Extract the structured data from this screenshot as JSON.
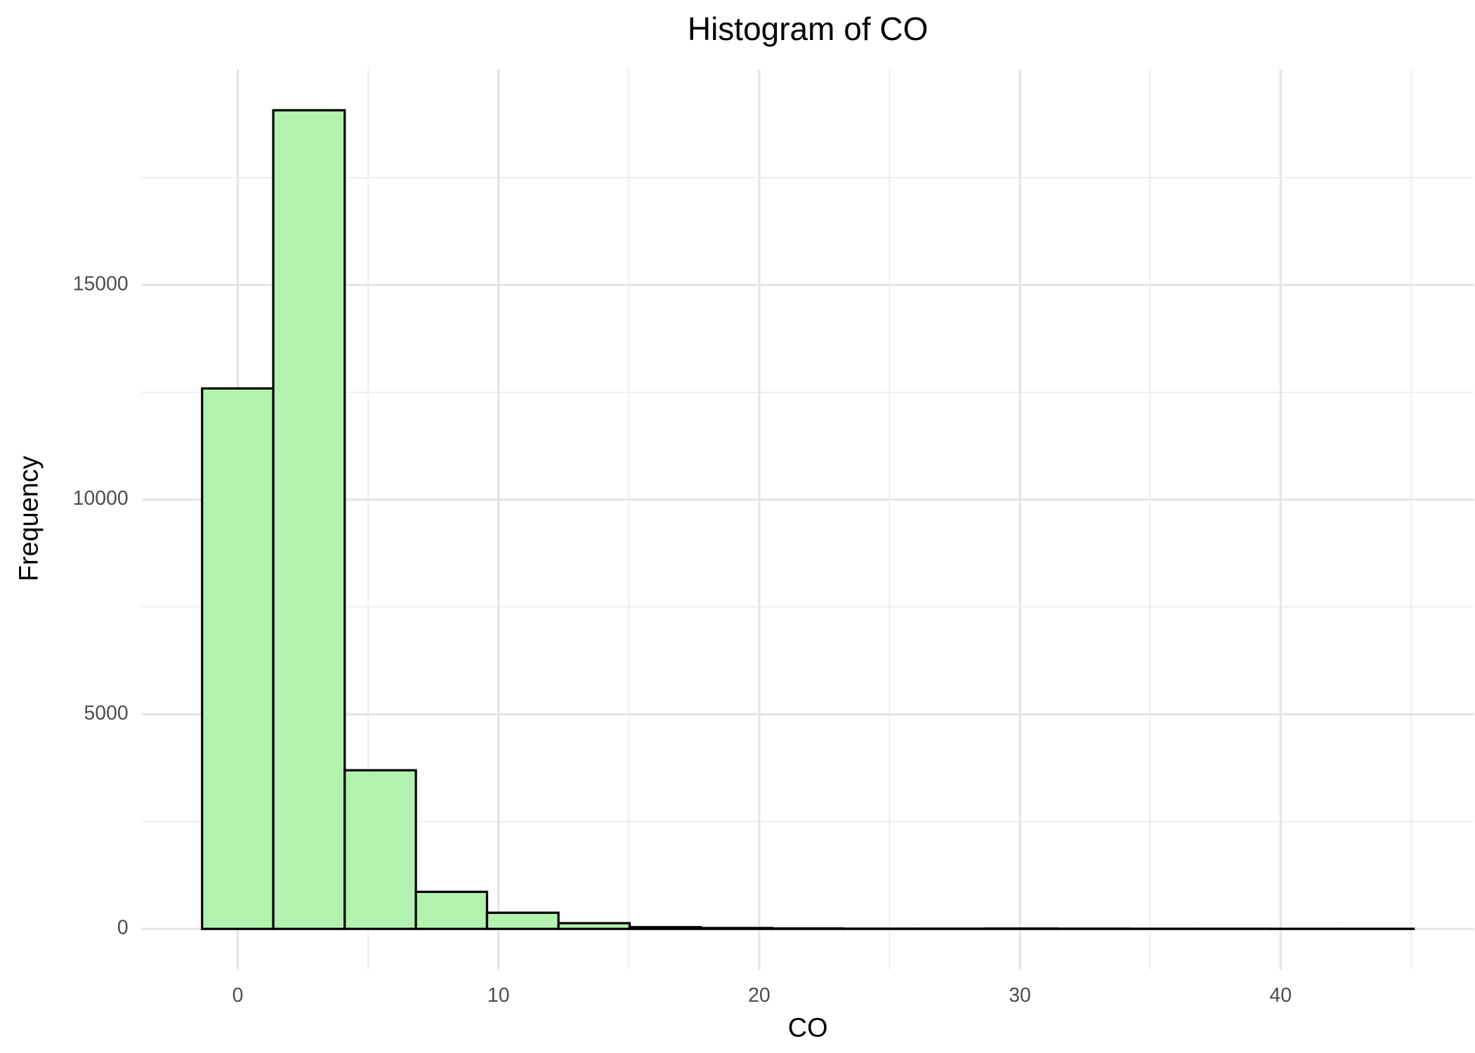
{
  "chart_data": {
    "type": "histogram",
    "title": "Histogram of CO",
    "x_label": "CO",
    "y_label": "Frequency",
    "bins": [
      -1.37,
      1.36,
      4.1,
      6.83,
      9.56,
      12.3,
      15.03,
      17.76,
      20.5,
      23.23,
      25.96,
      28.7,
      31.43,
      34.16,
      36.9,
      39.63,
      42.36,
      45.1
    ],
    "values": [
      12590,
      19070,
      3695,
      863,
      376,
      133,
      40,
      20,
      10,
      5,
      5,
      8,
      5,
      3,
      3,
      2,
      2
    ],
    "color": "#b2f2ae",
    "edge_color": "#000000",
    "xlim": [
      -3.69,
      47.42
    ],
    "ylim": [
      -953,
      20023
    ],
    "xticks": [
      0,
      10,
      20,
      30,
      40
    ],
    "yticks": [
      0,
      5000,
      10000,
      15000
    ],
    "x_minor_ticks": [
      5,
      15,
      25,
      35,
      45
    ],
    "y_minor_ticks": [
      2500,
      7500,
      12500,
      17500
    ],
    "grid": true
  }
}
